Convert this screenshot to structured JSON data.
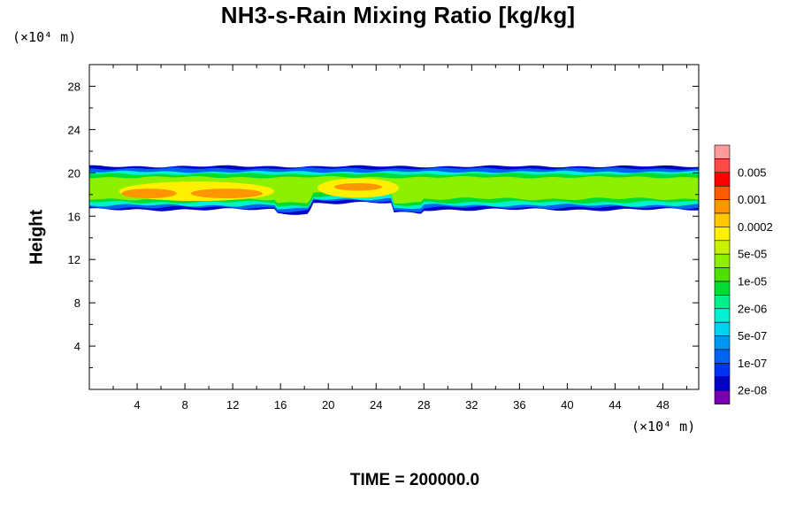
{
  "chart_data": {
    "type": "heatmap",
    "title": "NH3-s-Rain Mixing Ratio [kg/kg]",
    "ylabel": "Height",
    "x_unit_label": "(×10⁴ m)",
    "y_unit_label": "(×10⁴ m)",
    "xlim": [
      0,
      51
    ],
    "ylim": [
      0,
      30
    ],
    "x_ticks": [
      4,
      8,
      12,
      16,
      20,
      24,
      28,
      32,
      36,
      40,
      44,
      48
    ],
    "y_ticks": [
      4,
      8,
      12,
      16,
      20,
      24,
      28
    ],
    "footer": "TIME = 200000.0",
    "legend_levels": [
      {
        "label": "",
        "color": "#ff9b9b"
      },
      {
        "label": "0.005",
        "color": "#ff4a4a"
      },
      {
        "label": "",
        "color": "#ff0000"
      },
      {
        "label": "0.001",
        "color": "#ff5a00"
      },
      {
        "label": "",
        "color": "#ff9600"
      },
      {
        "label": "0.0002",
        "color": "#ffc800"
      },
      {
        "label": "",
        "color": "#fff000"
      },
      {
        "label": "5e-05",
        "color": "#c8f000"
      },
      {
        "label": "",
        "color": "#8cf000"
      },
      {
        "label": "1e-05",
        "color": "#50e000"
      },
      {
        "label": "",
        "color": "#00dc32"
      },
      {
        "label": "2e-06",
        "color": "#00f08c"
      },
      {
        "label": "",
        "color": "#00f0d2"
      },
      {
        "label": "5e-07",
        "color": "#00d2f0"
      },
      {
        "label": "",
        "color": "#0096f0"
      },
      {
        "label": "1e-07",
        "color": "#0064f0"
      },
      {
        "label": "",
        "color": "#0032f0"
      },
      {
        "label": "2e-08",
        "color": "#0000c8"
      },
      {
        "label": "",
        "color": "#7800b4"
      }
    ],
    "bands": [
      {
        "color": "#0000c8",
        "x": [
          0,
          51
        ],
        "y": [
          16.6,
          20.6
        ]
      },
      {
        "color": "#0064f0",
        "x": [
          0,
          51
        ],
        "y": [
          16.8,
          20.4
        ]
      },
      {
        "color": "#00f0d2",
        "x": [
          0,
          51
        ],
        "y": [
          17.0,
          20.1
        ]
      },
      {
        "color": "#00dc32",
        "x": [
          0,
          51
        ],
        "y": [
          17.3,
          19.9
        ]
      },
      {
        "color": "#8cf000",
        "x": [
          0,
          51
        ],
        "y": [
          17.6,
          19.6
        ]
      }
    ],
    "blobs": [
      {
        "color": "#fff000",
        "cx": 9.0,
        "cy": 18.3,
        "rx": 6.5,
        "ry": 0.9
      },
      {
        "color": "#ff9600",
        "cx": 5.0,
        "cy": 18.1,
        "rx": 2.3,
        "ry": 0.45
      },
      {
        "color": "#ff9600",
        "cx": 11.5,
        "cy": 18.1,
        "rx": 3.0,
        "ry": 0.45
      },
      {
        "color": "#fff000",
        "cx": 22.5,
        "cy": 18.6,
        "rx": 3.4,
        "ry": 0.9
      },
      {
        "color": "#ff9600",
        "cx": 22.5,
        "cy": 18.7,
        "rx": 2.0,
        "ry": 0.35
      }
    ]
  }
}
